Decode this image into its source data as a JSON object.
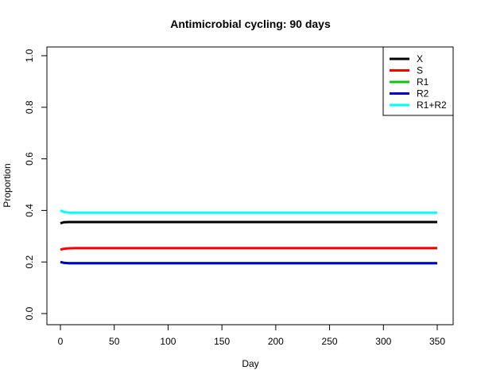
{
  "chart_data": {
    "type": "line",
    "title": "Antimicrobial cycling: 90 days",
    "xlabel": "Day",
    "ylabel": "Proportion",
    "xlim": [
      0,
      350
    ],
    "ylim": [
      0,
      1
    ],
    "x_ticks": [
      0,
      50,
      100,
      150,
      200,
      250,
      300,
      350
    ],
    "y_ticks": [
      0.0,
      0.2,
      0.4,
      0.6,
      0.8,
      1.0
    ],
    "x_tick_labels": [
      "0",
      "50",
      "100",
      "150",
      "200",
      "250",
      "300",
      "350"
    ],
    "y_tick_labels": [
      "0.0",
      "0.2",
      "0.4",
      "0.6",
      "0.8",
      "1.0"
    ],
    "legend_position": "top-right",
    "grid": false,
    "series": [
      {
        "name": "X",
        "color": "#000000",
        "x": [
          0,
          3,
          8,
          15,
          25,
          350
        ],
        "values": [
          0.35,
          0.354,
          0.355,
          0.355,
          0.355,
          0.355
        ]
      },
      {
        "name": "S",
        "color": "#ff0000",
        "x": [
          0,
          3,
          8,
          15,
          25,
          350
        ],
        "values": [
          0.248,
          0.251,
          0.253,
          0.254,
          0.254,
          0.254
        ]
      },
      {
        "name": "R1",
        "color": "#00cd00",
        "x": [
          0,
          3,
          8,
          15,
          25,
          350
        ],
        "values": [
          0.2,
          0.197,
          0.195,
          0.195,
          0.195,
          0.195
        ]
      },
      {
        "name": "R2",
        "color": "#0000cd",
        "x": [
          0,
          3,
          8,
          15,
          25,
          350
        ],
        "values": [
          0.2,
          0.197,
          0.195,
          0.195,
          0.195,
          0.195
        ]
      },
      {
        "name": "R1+R2",
        "color": "#00ffff",
        "x": [
          0,
          3,
          8,
          15,
          25,
          350
        ],
        "values": [
          0.4,
          0.394,
          0.391,
          0.391,
          0.391,
          0.391
        ]
      }
    ]
  }
}
